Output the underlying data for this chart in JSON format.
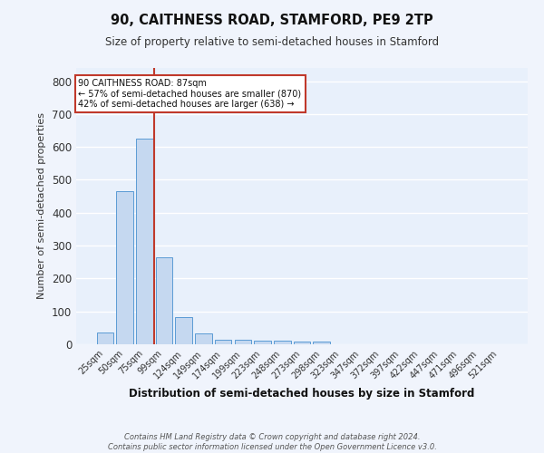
{
  "title": "90, CAITHNESS ROAD, STAMFORD, PE9 2TP",
  "subtitle": "Size of property relative to semi-detached houses in Stamford",
  "xlabel": "Distribution of semi-detached houses by size in Stamford",
  "ylabel": "Number of semi-detached properties",
  "categories": [
    "25sqm",
    "50sqm",
    "75sqm",
    "99sqm",
    "124sqm",
    "149sqm",
    "174sqm",
    "199sqm",
    "223sqm",
    "248sqm",
    "273sqm",
    "298sqm",
    "323sqm",
    "347sqm",
    "372sqm",
    "397sqm",
    "422sqm",
    "447sqm",
    "471sqm",
    "496sqm",
    "521sqm"
  ],
  "values": [
    35,
    465,
    625,
    265,
    83,
    33,
    15,
    13,
    10,
    10,
    8,
    8,
    0,
    0,
    0,
    0,
    0,
    0,
    0,
    0,
    0
  ],
  "bar_color": "#c5d8f0",
  "bar_edge_color": "#5b9bd5",
  "background_color": "#e8f0fb",
  "fig_background_color": "#f0f4fc",
  "grid_color": "#ffffff",
  "property_size": 87,
  "property_label": "90 CAITHNESS ROAD: 87sqm",
  "pct_smaller": 57,
  "n_smaller": 870,
  "pct_larger": 42,
  "n_larger": 638,
  "vline_color": "#c0392b",
  "annotation_box_color": "#ffffff",
  "annotation_box_edge": "#c0392b",
  "footer1": "Contains HM Land Registry data © Crown copyright and database right 2024.",
  "footer2": "Contains public sector information licensed under the Open Government Licence v3.0.",
  "ylim": [
    0,
    840
  ],
  "yticks": [
    0,
    100,
    200,
    300,
    400,
    500,
    600,
    700,
    800
  ]
}
